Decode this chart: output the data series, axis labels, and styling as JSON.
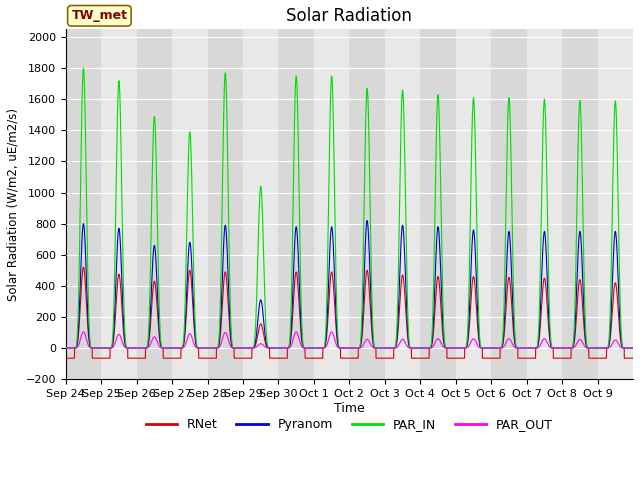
{
  "title": "Solar Radiation",
  "ylabel": "Solar Radiation (W/m2, uE/m2/s)",
  "xlabel": "Time",
  "station_label": "TW_met",
  "ylim": [
    -200,
    2050
  ],
  "yticks": [
    -200,
    0,
    200,
    400,
    600,
    800,
    1000,
    1200,
    1400,
    1600,
    1800,
    2000
  ],
  "background_color": "#d8d8d8",
  "band_colors": [
    "#d8d8d8",
    "#e8e8e8"
  ],
  "legend": [
    "RNet",
    "Pyranom",
    "PAR_IN",
    "PAR_OUT"
  ],
  "line_colors": [
    "#dd0000",
    "#0000dd",
    "#00dd00",
    "#ff00ff"
  ],
  "x_tick_labels": [
    "Sep 24",
    "Sep 25",
    "Sep 26",
    "Sep 27",
    "Sep 28",
    "Sep 29",
    "Sep 30",
    "Oct 1",
    "Oct 2",
    "Oct 3",
    "Oct 4",
    "Oct 5",
    "Oct 6",
    "Oct 7",
    "Oct 8",
    "Oct 9"
  ],
  "days": 16,
  "day_peaks_PAR_IN": [
    1800,
    1720,
    1490,
    1390,
    1770,
    1040,
    1750,
    1750,
    1670,
    1660,
    1630,
    1610,
    1610,
    1600,
    1590,
    1590
  ],
  "day_peaks_Pyranom": [
    800,
    770,
    660,
    680,
    790,
    310,
    780,
    780,
    820,
    790,
    780,
    760,
    750,
    750,
    750,
    750
  ],
  "day_peaks_RNet": [
    520,
    475,
    430,
    500,
    490,
    155,
    490,
    490,
    500,
    470,
    460,
    460,
    455,
    450,
    440,
    420
  ],
  "day_peaks_PAR_OUT": [
    130,
    110,
    90,
    115,
    125,
    35,
    130,
    130,
    70,
    70,
    75,
    75,
    75,
    75,
    70,
    65
  ],
  "night_RNet": -65,
  "points_per_day": 288
}
